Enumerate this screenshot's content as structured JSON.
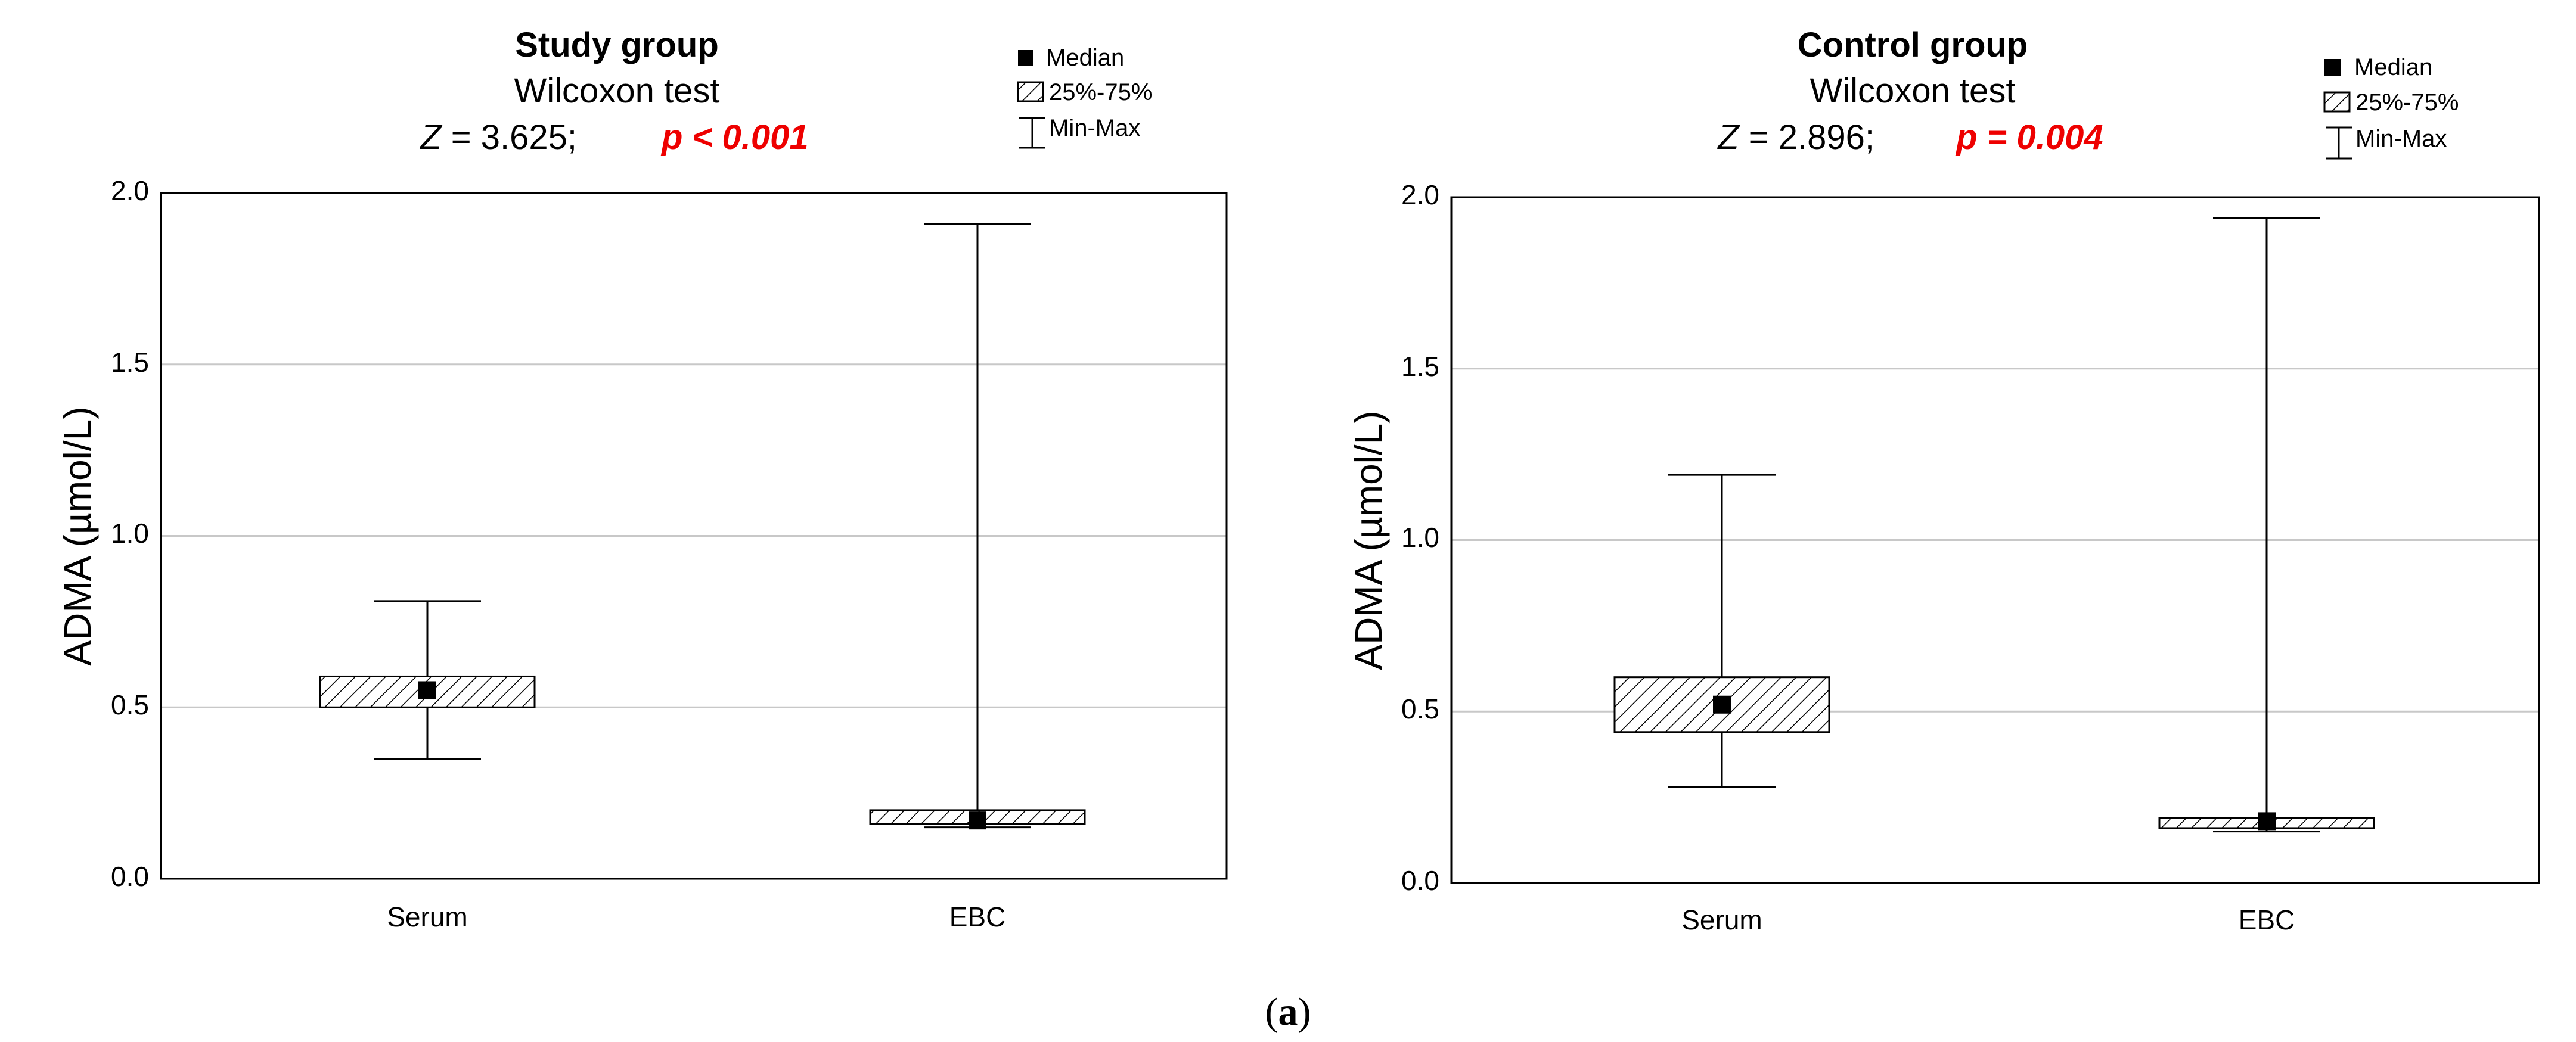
{
  "chart_data": [
    {
      "type": "box",
      "title": "Study group",
      "subtitle": "Wilcoxon test",
      "stat_prefix": "Z",
      "stat_text": " = 3.625;",
      "p_text": "p < 0.001",
      "ylabel": "ADMA (µmol/L)",
      "ylim": [
        0.0,
        2.0
      ],
      "yticks": [
        "0.0",
        "0.5",
        "1.0",
        "1.5",
        "2.0"
      ],
      "categories": [
        "Serum",
        "EBC"
      ],
      "series": [
        {
          "name": "Serum",
          "min": 0.35,
          "q1": 0.5,
          "median": 0.55,
          "q3": 0.59,
          "max": 0.81
        },
        {
          "name": "EBC",
          "min": 0.15,
          "q1": 0.16,
          "median": 0.17,
          "q3": 0.2,
          "max": 1.91
        }
      ],
      "legend": {
        "median": "Median",
        "iqr": "25%-75%",
        "range": "Min-Max"
      }
    },
    {
      "type": "box",
      "title": "Control group",
      "subtitle": "Wilcoxon test",
      "stat_prefix": "Z",
      "stat_text": " = 2.896;",
      "p_text": "p = 0.004",
      "ylabel": "ADMA (µmol/L)",
      "ylim": [
        0.0,
        2.0
      ],
      "yticks": [
        "0.0",
        "0.5",
        "1.0",
        "1.5",
        "2.0"
      ],
      "categories": [
        "Serum",
        "EBC"
      ],
      "series": [
        {
          "name": "Serum",
          "min": 0.28,
          "q1": 0.44,
          "median": 0.52,
          "q3": 0.6,
          "max": 1.19
        },
        {
          "name": "EBC",
          "min": 0.15,
          "q1": 0.16,
          "median": 0.18,
          "q3": 0.19,
          "max": 1.94
        }
      ],
      "legend": {
        "median": "Median",
        "iqr": "25%-75%",
        "range": "Min-Max"
      }
    }
  ],
  "caption": {
    "open": "(",
    "letter": "a",
    "close": ")"
  },
  "colors": {
    "p_value": "#ee0000",
    "grid": "#c8c8c8",
    "median": "#000000"
  }
}
